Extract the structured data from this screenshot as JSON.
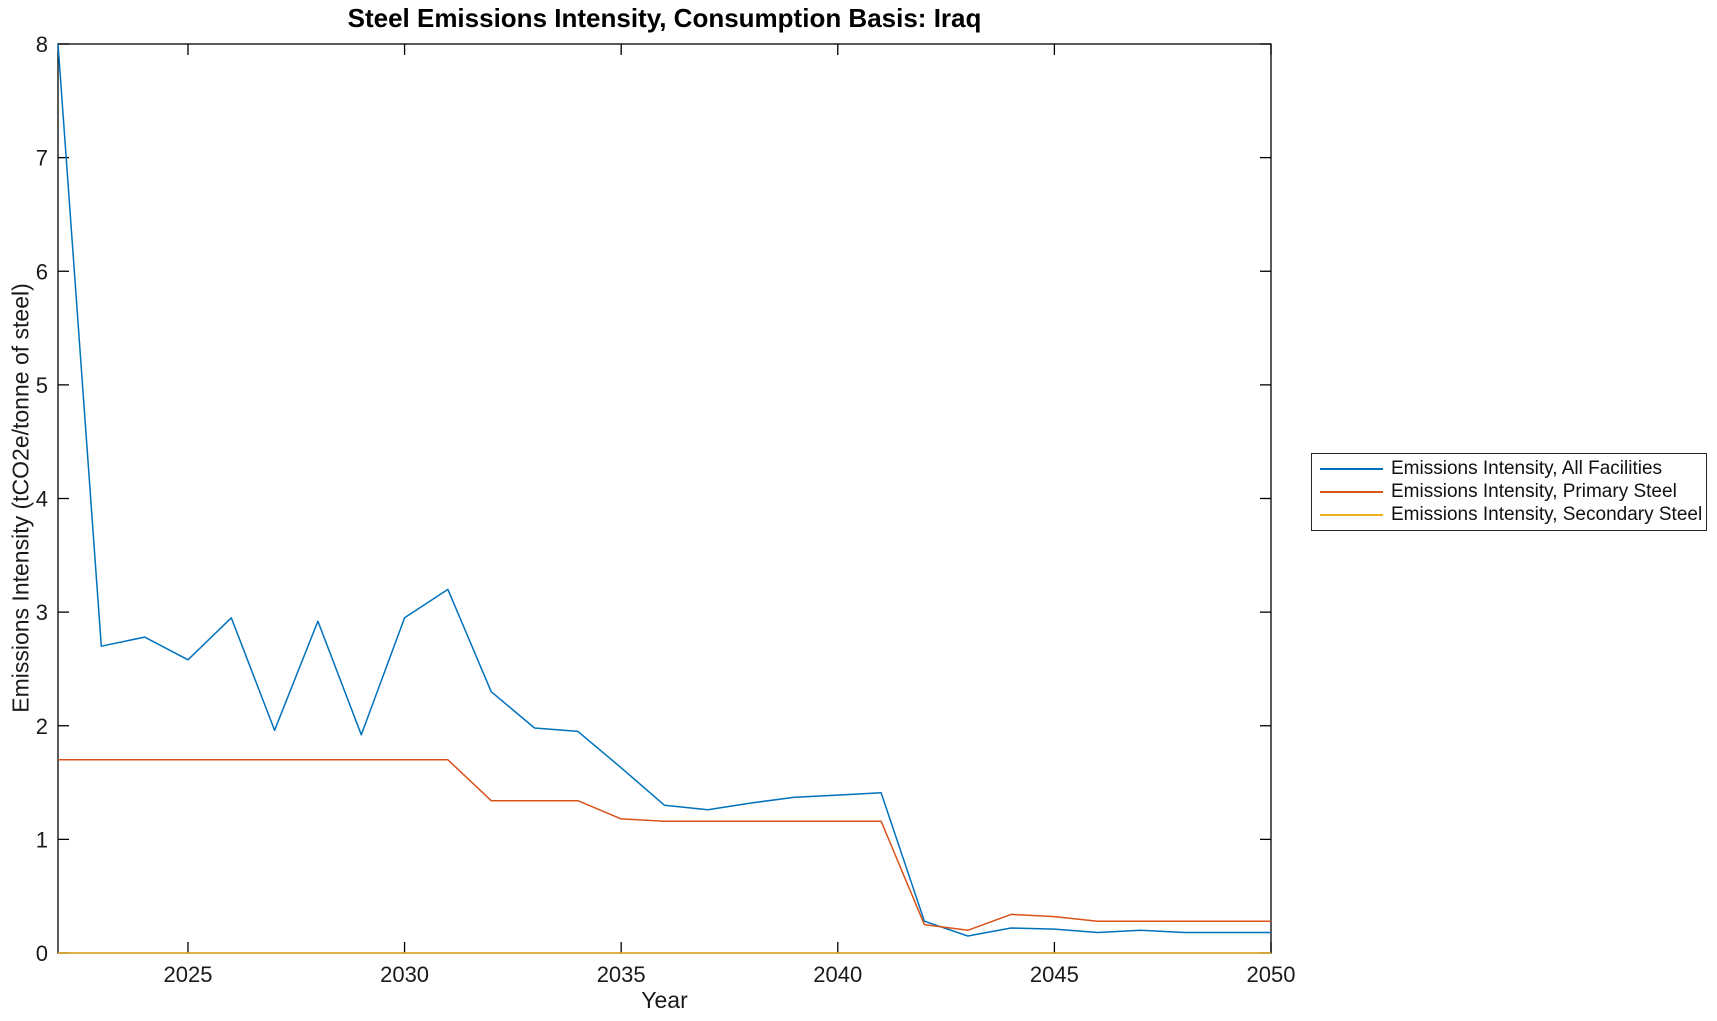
{
  "chart_data": {
    "type": "line",
    "title": "Steel Emissions Intensity, Consumption Basis: Iraq",
    "xlabel": "Year",
    "ylabel": "Emissions Intensity (tCO2e/tonne of steel)",
    "xlim": [
      2022,
      2050
    ],
    "ylim": [
      0,
      8
    ],
    "xticks": [
      2025,
      2030,
      2035,
      2040,
      2045,
      2050
    ],
    "yticks": [
      0,
      1,
      2,
      3,
      4,
      5,
      6,
      7,
      8
    ],
    "grid": false,
    "box": true,
    "axis_color": "#000000",
    "tick_label_color": "#1a1a1a",
    "legend_position": "northeast-outside",
    "x": [
      2022,
      2023,
      2024,
      2025,
      2026,
      2027,
      2028,
      2029,
      2030,
      2031,
      2032,
      2033,
      2034,
      2035,
      2036,
      2037,
      2038,
      2039,
      2040,
      2041,
      2042,
      2043,
      2044,
      2045,
      2046,
      2047,
      2048,
      2049,
      2050
    ],
    "series": [
      {
        "name": "Emissions Intensity, All Facilities",
        "color": "#0072BD",
        "values": [
          8.0,
          2.7,
          2.78,
          2.58,
          2.95,
          1.96,
          2.92,
          1.92,
          2.95,
          3.2,
          2.3,
          1.98,
          1.95,
          1.63,
          1.3,
          1.26,
          1.32,
          1.37,
          1.39,
          1.41,
          0.28,
          0.15,
          0.22,
          0.21,
          0.18,
          0.2,
          0.18,
          0.18,
          0.18
        ]
      },
      {
        "name": "Emissions Intensity, Primary Steel",
        "color": "#D95319",
        "values": [
          1.7,
          1.7,
          1.7,
          1.7,
          1.7,
          1.7,
          1.7,
          1.7,
          1.7,
          1.7,
          1.34,
          1.34,
          1.34,
          1.18,
          1.16,
          1.16,
          1.16,
          1.16,
          1.16,
          1.16,
          0.25,
          0.2,
          0.34,
          0.32,
          0.28,
          0.28,
          0.28,
          0.28,
          0.28
        ]
      },
      {
        "name": "Emissions Intensity, Secondary Steel",
        "color": "#EDB120",
        "values": [
          0,
          0,
          0,
          0,
          0,
          0,
          0,
          0,
          0,
          0,
          0,
          0,
          0,
          0,
          0,
          0,
          0,
          0,
          0,
          0,
          0,
          0,
          0,
          0,
          0,
          0,
          0,
          0,
          0
        ]
      }
    ]
  }
}
